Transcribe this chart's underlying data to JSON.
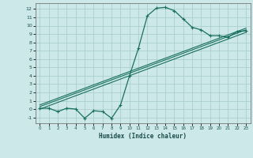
{
  "xlabel": "Humidex (Indice chaleur)",
  "bg_color": "#cce8e8",
  "grid_color": "#aacece",
  "line_color": "#1a7060",
  "xlim": [
    -0.5,
    23.5
  ],
  "ylim": [
    -1.7,
    12.7
  ],
  "xticks": [
    0,
    1,
    2,
    3,
    4,
    5,
    6,
    7,
    8,
    9,
    10,
    11,
    12,
    13,
    14,
    15,
    16,
    17,
    18,
    19,
    20,
    21,
    22,
    23
  ],
  "yticks": [
    -1,
    0,
    1,
    2,
    3,
    4,
    5,
    6,
    7,
    8,
    9,
    10,
    11,
    12
  ],
  "main_x": [
    0,
    1,
    2,
    3,
    4,
    5,
    6,
    7,
    8,
    9,
    10,
    11,
    12,
    13,
    14,
    15,
    16,
    17,
    18,
    19,
    20,
    21,
    22,
    23
  ],
  "main_y": [
    0.1,
    0.1,
    -0.3,
    0.1,
    0.0,
    -1.1,
    -0.2,
    -0.3,
    -1.1,
    0.5,
    4.0,
    7.3,
    11.2,
    12.1,
    12.2,
    11.8,
    10.8,
    9.8,
    9.5,
    8.8,
    8.8,
    8.6,
    9.3,
    9.4
  ],
  "line2_x": [
    0,
    23
  ],
  "line2_y": [
    0.3,
    9.5
  ],
  "line3_x": [
    0,
    23
  ],
  "line3_y": [
    0.0,
    9.2
  ],
  "line4_x": [
    0,
    23
  ],
  "line4_y": [
    0.5,
    9.7
  ]
}
